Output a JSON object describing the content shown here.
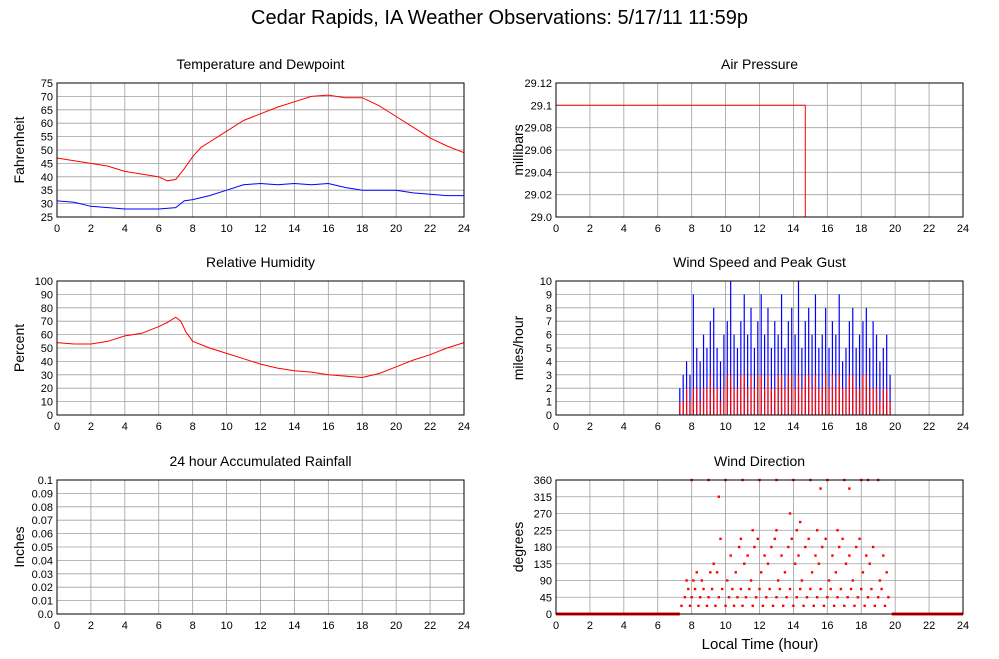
{
  "title": "Cedar Rapids, IA Weather Observations: 5/17/11 11:59p",
  "xlabel_common": "Local Time (hour)",
  "colors": {
    "red": "#ff0000",
    "blue": "#0000ff",
    "grid": "#a0a0a0",
    "frame": "#000000"
  },
  "chart_data": [
    {
      "type": "line",
      "title": "Temperature and Dewpoint",
      "ylabel": "Fahrenheit",
      "xlim": [
        0,
        24
      ],
      "ylim": [
        25,
        75
      ],
      "xticks": [
        0,
        2,
        4,
        6,
        8,
        10,
        12,
        14,
        16,
        18,
        20,
        22,
        24
      ],
      "yticks": [
        25,
        30,
        35,
        40,
        45,
        50,
        55,
        60,
        65,
        70,
        75
      ],
      "series": [
        {
          "color": "#ff0000",
          "x": [
            0,
            1,
            2,
            3,
            4,
            5,
            6,
            6.5,
            7,
            7.5,
            8,
            8.5,
            9,
            10,
            11,
            12,
            13,
            14,
            15,
            16,
            17,
            18,
            19,
            20,
            21,
            22,
            23,
            24
          ],
          "y": [
            47,
            46,
            45,
            44,
            42,
            41,
            40,
            38.5,
            39,
            43,
            47.5,
            51,
            53,
            57,
            61,
            63.5,
            66,
            68,
            70,
            70.5,
            69.5,
            69.5,
            66.5,
            62.5,
            58.5,
            54.5,
            51.5,
            49
          ]
        },
        {
          "color": "#0000ff",
          "x": [
            0,
            1,
            2,
            3,
            4,
            5,
            6,
            7,
            7.5,
            8,
            9,
            10,
            11,
            12,
            13,
            14,
            15,
            16,
            17,
            18,
            19,
            20,
            21,
            22,
            23,
            24
          ],
          "y": [
            31,
            30.5,
            29,
            28.5,
            28,
            28,
            28,
            28.5,
            31,
            31.5,
            33,
            35,
            37,
            37.5,
            37,
            37.5,
            37,
            37.5,
            36,
            35,
            35,
            35,
            34,
            33.5,
            33,
            33
          ]
        }
      ]
    },
    {
      "type": "line",
      "title": "Air Pressure",
      "ylabel": "millibars",
      "xlim": [
        0,
        24
      ],
      "ylim": [
        29.0,
        29.12
      ],
      "xticks": [
        0,
        2,
        4,
        6,
        8,
        10,
        12,
        14,
        16,
        18,
        20,
        22,
        24
      ],
      "yticks": [
        29.0,
        29.02,
        29.04,
        29.06,
        29.08,
        29.1,
        29.12
      ],
      "ytick_labels": [
        "29.0",
        "29.02",
        "29.04",
        "29.06",
        "29.08",
        "29.1",
        "29.12"
      ],
      "series": [
        {
          "color": "#ff0000",
          "x": [
            0,
            14.7,
            14.7,
            24
          ],
          "y": [
            29.1,
            29.1,
            29.0,
            29.0
          ]
        }
      ]
    },
    {
      "type": "line",
      "title": "Relative Humidity",
      "ylabel": "Percent",
      "xlim": [
        0,
        24
      ],
      "ylim": [
        0,
        100
      ],
      "xticks": [
        0,
        2,
        4,
        6,
        8,
        10,
        12,
        14,
        16,
        18,
        20,
        22,
        24
      ],
      "yticks": [
        0,
        10,
        20,
        30,
        40,
        50,
        60,
        70,
        80,
        90,
        100
      ],
      "series": [
        {
          "color": "#ff0000",
          "x": [
            0,
            1,
            2,
            3,
            4,
            5,
            6,
            6.5,
            7,
            7.3,
            7.6,
            8,
            9,
            10,
            11,
            12,
            13,
            14,
            15,
            16,
            17,
            18,
            19,
            20,
            21,
            22,
            23,
            24
          ],
          "y": [
            54,
            53,
            53,
            55,
            59,
            61,
            66,
            69,
            73,
            70,
            62,
            55,
            50,
            46,
            42,
            38,
            35,
            33,
            32,
            30,
            29,
            28,
            31,
            36,
            41,
            45,
            50,
            54
          ]
        }
      ]
    },
    {
      "type": "bar",
      "title": "Wind Speed and Peak Gust",
      "ylabel": "miles/hour",
      "xlim": [
        0,
        24
      ],
      "ylim": [
        0,
        10
      ],
      "xticks": [
        0,
        2,
        4,
        6,
        8,
        10,
        12,
        14,
        16,
        18,
        20,
        22,
        24
      ],
      "yticks": [
        0,
        1,
        2,
        3,
        4,
        5,
        6,
        7,
        8,
        9,
        10
      ],
      "series": [
        {
          "color": "#0000ff",
          "x": [
            7.3,
            7.5,
            7.7,
            7.9,
            8.1,
            8.3,
            8.5,
            8.7,
            8.9,
            9.1,
            9.3,
            9.5,
            9.7,
            9.9,
            10.1,
            10.3,
            10.5,
            10.7,
            10.9,
            11.1,
            11.3,
            11.5,
            11.7,
            11.9,
            12.1,
            12.3,
            12.5,
            12.7,
            12.9,
            13.1,
            13.3,
            13.5,
            13.7,
            13.9,
            14.1,
            14.3,
            14.5,
            14.7,
            14.9,
            15.1,
            15.3,
            15.5,
            15.7,
            15.9,
            16.1,
            16.3,
            16.5,
            16.7,
            16.9,
            17.1,
            17.3,
            17.5,
            17.7,
            17.9,
            18.1,
            18.3,
            18.5,
            18.7,
            18.9,
            19.1,
            19.3,
            19.5,
            19.7
          ],
          "y": [
            2,
            3,
            4,
            3,
            9,
            5,
            4,
            6,
            5,
            7,
            8,
            5,
            4,
            6,
            7,
            10,
            6,
            5,
            7,
            9,
            6,
            8,
            5,
            7,
            9,
            6,
            8,
            5,
            7,
            6,
            9,
            5,
            7,
            8,
            6,
            10,
            5,
            7,
            8,
            6,
            9,
            5,
            6,
            8,
            5,
            7,
            6,
            9,
            4,
            5,
            7,
            8,
            5,
            6,
            7,
            8,
            5,
            7,
            6,
            4,
            5,
            6,
            3
          ]
        },
        {
          "color": "#ff0000",
          "x": [
            7.3,
            7.5,
            7.7,
            7.9,
            8.1,
            8.3,
            8.5,
            8.7,
            8.9,
            9.1,
            9.3,
            9.5,
            9.7,
            9.9,
            10.1,
            10.3,
            10.5,
            10.7,
            10.9,
            11.1,
            11.3,
            11.5,
            11.7,
            11.9,
            12.1,
            12.3,
            12.5,
            12.7,
            12.9,
            13.1,
            13.3,
            13.5,
            13.7,
            13.9,
            14.1,
            14.3,
            14.5,
            14.7,
            14.9,
            15.1,
            15.3,
            15.5,
            15.7,
            15.9,
            16.1,
            16.3,
            16.5,
            16.7,
            16.9,
            17.1,
            17.3,
            17.5,
            17.7,
            17.9,
            18.1,
            18.3,
            18.5,
            18.7,
            18.9,
            19.1,
            19.3,
            19.5,
            19.7
          ],
          "y": [
            1,
            1,
            2,
            1,
            2,
            2,
            1,
            2,
            2,
            3,
            2,
            2,
            1,
            2,
            3,
            3,
            2,
            2,
            3,
            3,
            2,
            3,
            2,
            3,
            3,
            2,
            3,
            2,
            2,
            3,
            3,
            2,
            3,
            3,
            2,
            3,
            2,
            3,
            3,
            2,
            3,
            2,
            2,
            3,
            2,
            3,
            2,
            3,
            2,
            2,
            3,
            3,
            2,
            2,
            3,
            3,
            2,
            2,
            2,
            1,
            2,
            2,
            1
          ]
        }
      ]
    },
    {
      "type": "line",
      "title": "24 hour Accumulated Rainfall",
      "ylabel": "Inches",
      "xlim": [
        0,
        24
      ],
      "ylim": [
        0,
        0.1
      ],
      "xticks": [
        0,
        2,
        4,
        6,
        8,
        10,
        12,
        14,
        16,
        18,
        20,
        22,
        24
      ],
      "yticks": [
        0,
        0.01,
        0.02,
        0.03,
        0.04,
        0.05,
        0.06,
        0.07,
        0.08,
        0.09,
        0.1
      ],
      "ytick_labels": [
        "0.0",
        "0.01",
        "0.02",
        "0.03",
        "0.04",
        "0.05",
        "0.06",
        "0.07",
        "0.08",
        "0.09",
        "0.1"
      ],
      "series": [
        {
          "color": "#ff0000",
          "x": [
            0,
            24
          ],
          "y": [
            0,
            0
          ]
        }
      ]
    },
    {
      "type": "scatter",
      "title": "Wind Direction",
      "ylabel": "degrees",
      "xlabel": "Local Time (hour)",
      "xlim": [
        0,
        24
      ],
      "ylim": [
        0,
        360
      ],
      "xticks": [
        0,
        2,
        4,
        6,
        8,
        10,
        12,
        14,
        16,
        18,
        20,
        22,
        24
      ],
      "yticks": [
        0,
        45,
        90,
        135,
        180,
        225,
        270,
        315,
        360
      ],
      "baseline": {
        "color": "#ff0000",
        "segments": [
          [
            0,
            7.3
          ],
          [
            19.8,
            24
          ]
        ],
        "y": 0
      },
      "series": [
        {
          "color": "#ff0000",
          "x": [
            7.4,
            7.6,
            7.8,
            7.9,
            8.0,
            8.2,
            8.4,
            8.5,
            8.7,
            8.9,
            9.0,
            9.2,
            9.4,
            9.6,
            9.8,
            10.0,
            10.2,
            10.4,
            10.5,
            10.7,
            10.9,
            11.0,
            11.2,
            11.4,
            11.6,
            11.8,
            12.0,
            12.2,
            12.4,
            12.6,
            12.8,
            13.0,
            13.2,
            13.4,
            13.6,
            13.8,
            14.0,
            14.2,
            14.4,
            14.6,
            14.8,
            15.0,
            15.2,
            15.4,
            15.6,
            15.8,
            16.0,
            16.2,
            16.4,
            16.6,
            16.8,
            17.0,
            17.2,
            17.4,
            17.6,
            17.8,
            18.0,
            18.2,
            18.4,
            18.6,
            18.8,
            19.0,
            19.2,
            19.4,
            19.6,
            7.7,
            8.1,
            8.6,
            9.1,
            9.5,
            10.1,
            10.6,
            11.1,
            11.5,
            12.1,
            12.5,
            13.1,
            13.5,
            14.1,
            14.5,
            15.1,
            15.5,
            16.1,
            16.5,
            17.1,
            17.5,
            18.1,
            18.5,
            19.1,
            19.5,
            8.3,
            9.3,
            10.3,
            11.3,
            12.3,
            13.3,
            14.3,
            15.3,
            16.3,
            17.3,
            18.3,
            19.3,
            10.8,
            11.7,
            12.7,
            13.7,
            14.7,
            15.7,
            16.7,
            17.7,
            18.7,
            9.7,
            10.9,
            11.9,
            12.9,
            13.9,
            14.9,
            15.9,
            16.9,
            17.9,
            11.6,
            13.0,
            14.2,
            15.4,
            16.6,
            13.8,
            14.4,
            8.0,
            9.0,
            10.0,
            11.0,
            12.0,
            13.0,
            14.0,
            15.0,
            16.0,
            17.0,
            18.0,
            19.0,
            9.6,
            15.6,
            17.3,
            18.4
          ],
          "y": [
            22,
            45,
            67,
            22,
            45,
            67,
            22,
            45,
            67,
            22,
            45,
            67,
            22,
            45,
            67,
            22,
            45,
            67,
            22,
            45,
            67,
            22,
            45,
            67,
            22,
            45,
            67,
            22,
            45,
            67,
            22,
            45,
            67,
            22,
            45,
            67,
            22,
            45,
            67,
            22,
            45,
            67,
            22,
            45,
            67,
            22,
            45,
            67,
            22,
            45,
            67,
            22,
            45,
            67,
            22,
            45,
            67,
            22,
            45,
            67,
            22,
            45,
            67,
            22,
            45,
            90,
            90,
            90,
            112,
            112,
            90,
            112,
            135,
            90,
            112,
            135,
            90,
            112,
            135,
            90,
            112,
            135,
            90,
            112,
            135,
            90,
            112,
            135,
            90,
            112,
            112,
            135,
            157,
            157,
            157,
            157,
            157,
            157,
            157,
            157,
            157,
            157,
            180,
            180,
            180,
            180,
            180,
            180,
            180,
            180,
            180,
            202,
            202,
            202,
            202,
            202,
            202,
            202,
            202,
            202,
            225,
            225,
            225,
            225,
            225,
            270,
            247,
            360,
            360,
            360,
            360,
            360,
            360,
            360,
            360,
            360,
            360,
            360,
            360,
            315,
            337,
            337,
            360
          ]
        }
      ]
    }
  ]
}
